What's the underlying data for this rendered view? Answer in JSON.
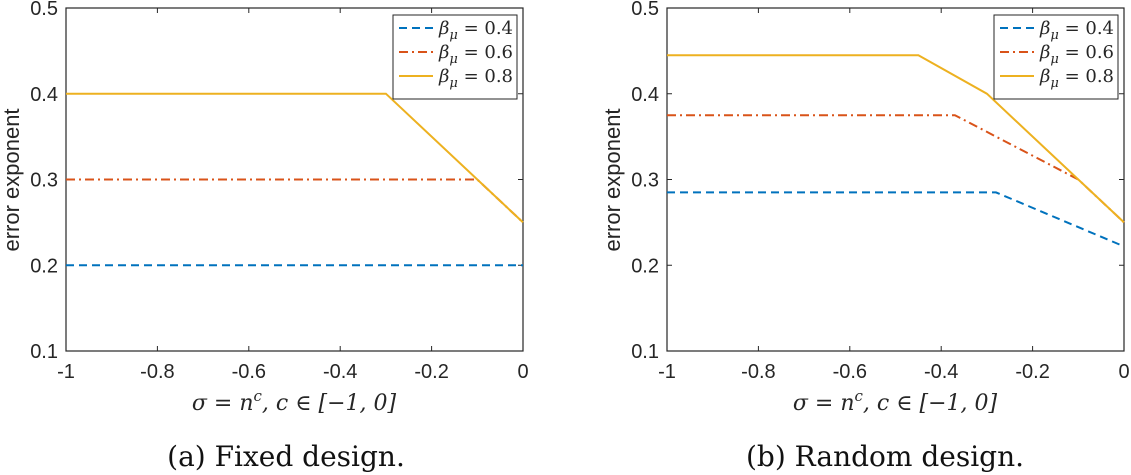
{
  "colors": {
    "series": [
      "#0072BD",
      "#D95319",
      "#EDB120"
    ],
    "axis": "#262626"
  },
  "chart_data": [
    {
      "type": "line",
      "caption": "(a) Fixed design.",
      "xlabel": "σ = n^c, c ∈ [−1, 0]",
      "ylabel": "error exponent",
      "xlim": [
        -1,
        0
      ],
      "ylim": [
        0.1,
        0.5
      ],
      "xticks": [
        -1,
        -0.8,
        -0.6,
        -0.4,
        -0.2,
        0
      ],
      "xtick_labels": [
        "-1",
        "-0.8",
        "-0.6",
        "-0.4",
        "-0.2",
        "0"
      ],
      "yticks": [
        0.1,
        0.2,
        0.3,
        0.4,
        0.5
      ],
      "ytick_labels": [
        "0.1",
        "0.2",
        "0.3",
        "0.4",
        "0.5"
      ],
      "legend_position": "top-right",
      "series": [
        {
          "name": "β_μ = 0.4",
          "sub": "μ",
          "value_label": "0.4",
          "style": "dashed",
          "x": [
            -1,
            0
          ],
          "y": [
            0.2,
            0.2
          ]
        },
        {
          "name": "β_μ = 0.6",
          "sub": "μ",
          "value_label": "0.6",
          "style": "dashdot",
          "x": [
            -1,
            -0.1,
            0
          ],
          "y": [
            0.3,
            0.3,
            0.25
          ]
        },
        {
          "name": "β_μ = 0.8",
          "sub": "μ",
          "value_label": "0.8",
          "style": "solid",
          "x": [
            -1,
            -0.3,
            0
          ],
          "y": [
            0.4,
            0.4,
            0.25
          ]
        }
      ]
    },
    {
      "type": "line",
      "caption": "(b) Random design.",
      "xlabel": "σ = n^c, c ∈ [−1, 0]",
      "ylabel": "error exponent",
      "xlim": [
        -1,
        0
      ],
      "ylim": [
        0.1,
        0.5
      ],
      "xticks": [
        -1,
        -0.8,
        -0.6,
        -0.4,
        -0.2,
        0
      ],
      "xtick_labels": [
        "-1",
        "-0.8",
        "-0.6",
        "-0.4",
        "-0.2",
        "0"
      ],
      "yticks": [
        0.1,
        0.2,
        0.3,
        0.4,
        0.5
      ],
      "ytick_labels": [
        "0.1",
        "0.2",
        "0.3",
        "0.4",
        "0.5"
      ],
      "legend_position": "top-right",
      "series": [
        {
          "name": "β_μ = 0.4",
          "sub": "μ",
          "value_label": "0.4",
          "style": "dashed",
          "x": [
            -1,
            -0.28,
            0
          ],
          "y": [
            0.285,
            0.285,
            0.222
          ]
        },
        {
          "name": "β_μ = 0.6",
          "sub": "μ",
          "value_label": "0.6",
          "style": "dashdot",
          "x": [
            -1,
            -0.37,
            -0.1,
            0
          ],
          "y": [
            0.375,
            0.375,
            0.3,
            0.25
          ]
        },
        {
          "name": "β_μ = 0.8",
          "sub": "μ",
          "value_label": "0.8",
          "style": "solid",
          "x": [
            -1,
            -0.45,
            -0.3,
            0
          ],
          "y": [
            0.445,
            0.445,
            0.4,
            0.25
          ]
        }
      ]
    }
  ]
}
